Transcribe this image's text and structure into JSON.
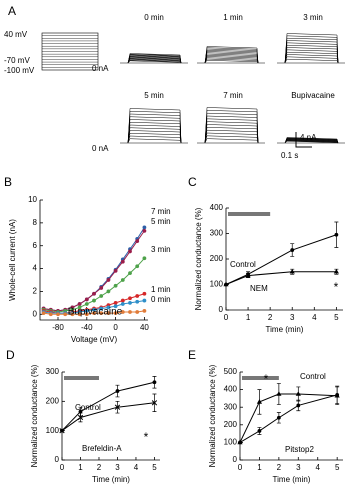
{
  "panel_a": {
    "label": "A",
    "step_labels": [
      "40 mV",
      "-70 mV",
      "-100 mV"
    ],
    "zero_labels": [
      "0 nA",
      "0 nA"
    ],
    "traces": [
      "0 min",
      "1 min",
      "3 min",
      "5 min",
      "7 min",
      "Bupivacaine"
    ],
    "scale_current": "4 nA",
    "scale_time": "0.1 s"
  },
  "chart_data": [
    {
      "type": "line",
      "panel": "B",
      "xlabel": "Voltage (mV)",
      "ylabel": "Whole-cell current (nA)",
      "x": [
        -100,
        -90,
        -80,
        -70,
        -60,
        -50,
        -40,
        -30,
        -20,
        -10,
        0,
        10,
        20,
        30,
        40
      ],
      "xlim": [
        -105,
        45
      ],
      "xticks": [
        -80,
        -40,
        0,
        40
      ],
      "ylim": [
        -0.5,
        10
      ],
      "yticks": [
        0,
        2,
        4,
        6,
        8,
        10
      ],
      "series": [
        {
          "name": "7 min",
          "color": "#2e5fa8",
          "marker": "circle",
          "values": [
            0.5,
            0.4,
            0.3,
            0.4,
            0.6,
            0.9,
            1.3,
            1.8,
            2.4,
            3.1,
            3.9,
            4.8,
            5.7,
            6.6,
            7.6
          ]
        },
        {
          "name": "5 min",
          "color": "#9b1d4a",
          "marker": "circle",
          "values": [
            0.5,
            0.4,
            0.3,
            0.4,
            0.6,
            0.9,
            1.3,
            1.8,
            2.3,
            3.0,
            3.8,
            4.6,
            5.5,
            6.4,
            7.3
          ]
        },
        {
          "name": "3 min",
          "color": "#4ea24a",
          "marker": "circle",
          "values": [
            0.4,
            0.3,
            0.2,
            0.3,
            0.4,
            0.6,
            0.9,
            1.2,
            1.6,
            2.0,
            2.5,
            3.0,
            3.6,
            4.2,
            4.9
          ]
        },
        {
          "name": "1 min",
          "color": "#d62728",
          "marker": "circle",
          "values": [
            0.3,
            0.2,
            0.1,
            0.1,
            0.2,
            0.3,
            0.4,
            0.5,
            0.6,
            0.8,
            1.0,
            1.2,
            1.4,
            1.6,
            1.8
          ]
        },
        {
          "name": "0 min",
          "color": "#2e8fc9",
          "marker": "circle",
          "values": [
            0.2,
            0.1,
            0.1,
            0.1,
            0.1,
            0.2,
            0.3,
            0.4,
            0.5,
            0.6,
            0.7,
            0.9,
            1.0,
            1.1,
            1.2
          ]
        },
        {
          "name": "Bupivacaine",
          "color": "#e07b39",
          "marker": "circle",
          "values": [
            0.1,
            0,
            0,
            0,
            0,
            0,
            0,
            0.1,
            0.1,
            0.1,
            0.1,
            0.2,
            0.2,
            0.2,
            0.3
          ]
        }
      ]
    },
    {
      "type": "line",
      "panel": "C",
      "xlabel": "Time (min)",
      "ylabel": "Normalized conductance (%)",
      "x": [
        0,
        1,
        3,
        5
      ],
      "xlim": [
        0,
        5.3
      ],
      "xticks": [
        0,
        1,
        2,
        3,
        4,
        5
      ],
      "ylim": [
        0,
        400
      ],
      "yticks": [
        0,
        100,
        200,
        300,
        400
      ],
      "treatment": [
        0,
        2
      ],
      "annotation": "*",
      "series": [
        {
          "name": "Control",
          "color": "#000000",
          "marker": "circle",
          "values": [
            100,
            140,
            235,
            295
          ],
          "errors": [
            0,
            10,
            25,
            50
          ]
        },
        {
          "name": "NEM",
          "color": "#000000",
          "marker": "triangle",
          "values": [
            100,
            135,
            150,
            150
          ],
          "errors": [
            0,
            8,
            10,
            10
          ]
        }
      ]
    },
    {
      "type": "line",
      "panel": "D",
      "xlabel": "Time (min)",
      "ylabel": "Normalized conductance (%)",
      "x": [
        0,
        1,
        3,
        5
      ],
      "xlim": [
        0,
        5.3
      ],
      "xticks": [
        0,
        1,
        2,
        3,
        4,
        5
      ],
      "ylim": [
        0,
        300
      ],
      "yticks": [
        0,
        100,
        200,
        300
      ],
      "treatment": [
        0,
        2
      ],
      "annotation": "*",
      "series": [
        {
          "name": "Control",
          "color": "#000000",
          "marker": "circle",
          "values": [
            100,
            165,
            235,
            265
          ],
          "errors": [
            0,
            15,
            20,
            20
          ]
        },
        {
          "name": "Brefeldin-A",
          "color": "#000000",
          "marker": "x",
          "values": [
            100,
            145,
            180,
            195
          ],
          "errors": [
            0,
            15,
            20,
            30
          ]
        }
      ]
    },
    {
      "type": "line",
      "panel": "E",
      "xlabel": "Time (min)",
      "ylabel": "Normalized conductance (%)",
      "x": [
        0,
        1,
        2,
        3,
        5
      ],
      "xlim": [
        0,
        5.3
      ],
      "xticks": [
        0,
        1,
        2,
        3,
        4,
        5
      ],
      "ylim": [
        0,
        500
      ],
      "yticks": [
        0,
        100,
        200,
        300,
        400,
        500
      ],
      "treatment": [
        0,
        2
      ],
      "annotation": "*",
      "series": [
        {
          "name": "Control",
          "color": "#000000",
          "marker": "circle",
          "values": [
            100,
            165,
            240,
            310,
            370
          ],
          "errors": [
            0,
            20,
            30,
            30,
            50
          ]
        },
        {
          "name": "Pitstop2",
          "color": "#000000",
          "marker": "triangle",
          "values": [
            100,
            330,
            375,
            375,
            365
          ],
          "errors": [
            0,
            70,
            60,
            40,
            50
          ]
        }
      ]
    }
  ]
}
